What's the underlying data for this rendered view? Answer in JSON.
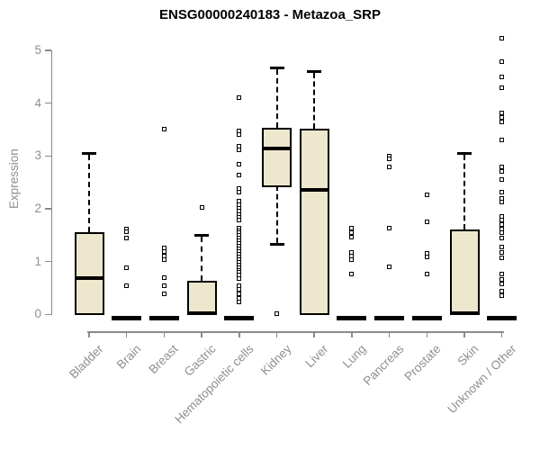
{
  "colors": {
    "box_fill": "#EDE7CD",
    "box_stroke": "#000000",
    "axis_line": "#8A8A8A",
    "axis_text": "#8F8F8F",
    "title_text": "#000000",
    "background": "#FFFFFF"
  },
  "chart_data": {
    "type": "boxplot",
    "title": "ENSG00000240183 - Metazoa_SRP",
    "xlabel": "",
    "ylabel": "Expression",
    "ylim": [
      0,
      5
    ],
    "yticks": [
      0,
      1,
      2,
      3,
      4,
      5
    ],
    "grid": false,
    "legend": false,
    "categories": [
      "Bladder",
      "Brain",
      "Breast",
      "Gastric",
      "Hematopoietic cells",
      "Kidney",
      "Liver",
      "Lung",
      "Pancreas",
      "Prostate",
      "Skin",
      "Unknown / Other"
    ],
    "series": [
      {
        "name": "Bladder",
        "low": 0,
        "q1": 0.02,
        "median": 0.68,
        "q3": 1.56,
        "high": 3.06,
        "outliers": []
      },
      {
        "name": "Brain",
        "low": 0,
        "q1": 0,
        "median": 0,
        "q3": 0.02,
        "high": 0.02,
        "outliers": [
          1.62,
          1.57,
          1.44,
          0.88,
          0.55
        ]
      },
      {
        "name": "Breast",
        "low": 0,
        "q1": 0,
        "median": 0,
        "q3": 0.02,
        "high": 0.02,
        "outliers": [
          3.51,
          1.25,
          1.19,
          1.1,
          1.04,
          0.69,
          0.55,
          0.39
        ]
      },
      {
        "name": "Gastric",
        "low": 0,
        "q1": 0.02,
        "median": 0.03,
        "q3": 0.63,
        "high": 1.51,
        "outliers": [
          2.03
        ]
      },
      {
        "name": "Hematopoietic cells",
        "low": 0,
        "q1": 0,
        "median": 0,
        "q3": 0.02,
        "high": 0.02,
        "outliers": [
          4.11,
          3.48,
          3.4,
          3.19,
          3.12,
          2.85,
          2.64,
          2.38,
          2.31,
          2.15,
          2.08,
          2.01,
          1.95,
          1.89,
          1.83,
          1.78,
          1.64,
          1.59,
          1.54,
          1.49,
          1.44,
          1.39,
          1.34,
          1.29,
          1.24,
          1.19,
          1.14,
          1.09,
          1.04,
          0.99,
          0.94,
          0.89,
          0.84,
          0.79,
          0.74,
          0.67,
          0.55,
          0.47,
          0.39,
          0.3,
          0.24
        ]
      },
      {
        "name": "Kidney",
        "low": 1.31,
        "q1": 2.45,
        "median": 3.14,
        "q3": 3.54,
        "high": 4.67,
        "outliers": [
          0.02
        ]
      },
      {
        "name": "Liver",
        "low": 0,
        "q1": 0.02,
        "median": 2.35,
        "q3": 3.51,
        "high": 4.61,
        "outliers": []
      },
      {
        "name": "Lung",
        "low": 0,
        "q1": 0,
        "median": 0,
        "q3": 0.02,
        "high": 0.02,
        "outliers": [
          1.64,
          1.55,
          1.47,
          1.18,
          1.1,
          1.04,
          0.77
        ]
      },
      {
        "name": "Pancreas",
        "low": 0,
        "q1": 0,
        "median": 0,
        "q3": 0.02,
        "high": 0.02,
        "outliers": [
          3.0,
          2.94,
          2.8,
          1.64,
          0.9
        ]
      },
      {
        "name": "Prostate",
        "low": 0,
        "q1": 0,
        "median": 0,
        "q3": 0.02,
        "high": 0.02,
        "outliers": [
          2.26,
          1.75,
          1.15,
          1.08,
          0.76
        ]
      },
      {
        "name": "Skin",
        "low": 0,
        "q1": 0.02,
        "median": 0.03,
        "q3": 1.6,
        "high": 3.06,
        "outliers": []
      },
      {
        "name": "Unknown / Other",
        "low": 0,
        "q1": 0,
        "median": 0,
        "q3": 0.02,
        "high": 0.02,
        "outliers": [
          5.23,
          4.79,
          4.5,
          4.3,
          3.82,
          3.73,
          3.65,
          3.31,
          2.8,
          2.7,
          2.55,
          2.32,
          2.2,
          2.12,
          1.86,
          1.78,
          1.7,
          1.62,
          1.55,
          1.45,
          1.27,
          1.17,
          1.07,
          0.76,
          0.66,
          0.58,
          0.44,
          0.36
        ]
      }
    ]
  }
}
